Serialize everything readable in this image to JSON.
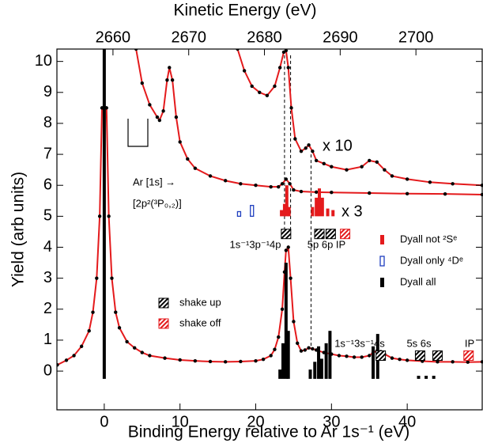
{
  "chart_data": {
    "type": "scatter",
    "x_label": "Binding Energy relative to Ar 1s⁻¹ (eV)",
    "x2_label": "Kinetic Energy (eV)",
    "y_label": "Yield (arb units)",
    "xlim": [
      -6.25,
      49.9
    ],
    "xticks": [
      0,
      10,
      20,
      30,
      40
    ],
    "x2lim": [
      2652.6,
      2708.75
    ],
    "x2ticks": [
      2660,
      2670,
      2680,
      2690,
      2700
    ],
    "ylim": [
      -1.25,
      10.4
    ],
    "yticks": [
      0,
      1,
      2,
      3,
      4,
      5,
      6,
      7,
      8,
      9,
      10
    ],
    "curves": [
      {
        "x": [
          -6.2,
          -5,
          -4,
          -3,
          -2,
          -1.5,
          -1,
          -0.6,
          -0.3,
          0.3,
          0.6,
          1,
          1.5,
          2,
          3,
          4,
          5,
          6,
          8,
          10,
          12,
          14,
          16,
          18,
          20,
          21,
          22,
          22.5,
          23,
          23.5,
          23.8,
          24,
          24.3,
          24.6,
          25,
          25.5,
          26,
          26.5,
          27,
          27.5,
          28,
          29,
          30,
          31,
          32,
          33,
          34,
          35,
          35.5,
          36,
          36.5,
          37,
          38,
          39,
          40,
          42,
          44,
          46,
          48,
          49.9
        ],
        "values": [
          0.2,
          0.35,
          0.5,
          0.8,
          1.3,
          1.9,
          3.0,
          5.0,
          8.5,
          8.5,
          5.0,
          3.0,
          1.9,
          1.4,
          0.95,
          0.75,
          0.6,
          0.5,
          0.42,
          0.36,
          0.33,
          0.31,
          0.3,
          0.31,
          0.33,
          0.38,
          0.5,
          0.7,
          1.1,
          2.0,
          3.2,
          3.9,
          4.0,
          3.0,
          1.6,
          0.9,
          0.65,
          0.68,
          0.75,
          0.72,
          0.68,
          0.6,
          0.55,
          0.5,
          0.48,
          0.45,
          0.45,
          0.5,
          0.6,
          0.65,
          0.63,
          0.55,
          0.42,
          0.38,
          0.35,
          0.32,
          0.3,
          0.3,
          0.29,
          0.3
        ]
      },
      {
        "x": [
          4.2,
          5,
          6,
          7,
          7.3,
          7.8,
          8.3,
          8.6,
          9,
          9.5,
          10,
          11,
          12,
          14,
          16,
          18,
          20,
          22,
          23,
          23.5,
          24,
          24.5,
          25,
          26,
          28,
          30,
          35,
          40,
          45,
          49.9
        ],
        "values": [
          10.4,
          9.3,
          8.6,
          8.2,
          8.1,
          8.4,
          9.4,
          9.8,
          9.4,
          8.2,
          7.4,
          6.85,
          6.55,
          6.3,
          6.15,
          6.05,
          6.0,
          5.95,
          5.95,
          6.05,
          6.2,
          6.05,
          5.85,
          5.8,
          5.78,
          5.77,
          5.75,
          5.73,
          5.72,
          5.7
        ]
      },
      {
        "x": [
          17.6,
          18.5,
          19.5,
          20.5,
          21.5,
          22.5,
          23.2,
          23.7,
          24,
          24.3,
          24.7,
          25.2,
          26,
          26.6,
          27,
          27.5,
          28,
          29,
          30,
          32,
          34,
          35,
          36,
          37,
          38,
          40,
          43,
          46,
          49.9
        ],
        "values": [
          10.4,
          9.7,
          9.2,
          9.0,
          8.9,
          9.2,
          9.8,
          10.3,
          10.35,
          9.8,
          8.5,
          7.5,
          7.1,
          7.2,
          7.3,
          7.1,
          6.8,
          6.7,
          6.6,
          6.5,
          6.6,
          6.8,
          6.75,
          6.5,
          6.3,
          6.2,
          6.1,
          6.05,
          6.0
        ]
      }
    ],
    "sticks": [
      {
        "name": "Dyall not ²Sᵉ",
        "color": "#e41a1c",
        "style": "filled",
        "base": 5,
        "x": [
          23.4,
          23.8,
          24.1,
          24.4,
          27.5,
          28.0,
          28.4,
          28.8,
          29.5,
          30.2
        ],
        "values": [
          5.2,
          5.4,
          6.0,
          5.3,
          5.3,
          5.6,
          5.9,
          5.6,
          5.25,
          5.2
        ]
      },
      {
        "name": "Dyall only ⁴Dᵉ",
        "color": "#1f3fbf",
        "style": "open",
        "base": 5,
        "x": [
          17.8,
          19.5
        ],
        "values": [
          5.15,
          5.35
        ]
      },
      {
        "name": "Dyall all",
        "color": "#000000",
        "style": "filled",
        "base": -0.25,
        "x": [
          0,
          23.2,
          23.6,
          24.0,
          24.3,
          27.2,
          27.8,
          28.3,
          28.7,
          29.3,
          29.8,
          35.5,
          36.1,
          41.5,
          42.5,
          43.5
        ],
        "values": [
          12,
          0.05,
          0.9,
          3.5,
          1.3,
          0.05,
          0.3,
          0.8,
          0.4,
          0.9,
          1.3,
          0.8,
          1.2,
          -0.15,
          -0.15,
          -0.15
        ]
      }
    ],
    "dashed_lines": [
      {
        "x": 23.8,
        "y": [
          10.2,
          4.5
        ]
      },
      {
        "x": 24.6,
        "y": [
          10.2,
          4.5
        ]
      },
      {
        "x": 27.3,
        "y": [
          7.0,
          0.7
        ]
      }
    ],
    "shake_markers": [
      {
        "x": 24.0,
        "y": 4.43,
        "kind": "up"
      },
      {
        "x": 28.4,
        "y": 4.43,
        "kind": "up"
      },
      {
        "x": 29.9,
        "y": 4.43,
        "kind": "up"
      },
      {
        "x": 31.8,
        "y": 4.43,
        "kind": "off"
      },
      {
        "x": 36.5,
        "y": 0.5,
        "kind": "up"
      },
      {
        "x": 41.7,
        "y": 0.5,
        "kind": "up"
      },
      {
        "x": 44.0,
        "y": 0.5,
        "kind": "up"
      },
      {
        "x": 48.1,
        "y": 0.5,
        "kind": "off"
      }
    ],
    "annotations": {
      "x10": "x 10",
      "x3": "x 3",
      "ar1s": "Ar [1s] →",
      "config": "[2p²(³P₀,₂)]",
      "group1": "1s⁻¹3p⁻¹4p",
      "group1b": "5p 6p IP",
      "group2": "1s⁻¹3s⁻¹4s",
      "group2b": "5s 6s",
      "group2c": "IP"
    },
    "shake_legend": [
      "shake up",
      "shake off"
    ]
  }
}
